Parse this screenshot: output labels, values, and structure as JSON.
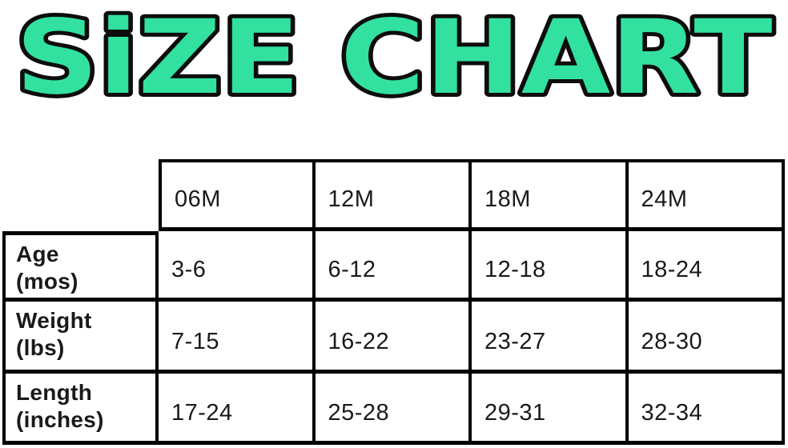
{
  "title": {
    "text": "SiZE CHART",
    "fill_color": "#32E19F",
    "outline_color": "#0d0d0d"
  },
  "table": {
    "column_headers": [
      "06M",
      "12M",
      "18M",
      "24M"
    ],
    "rows": [
      {
        "label_line1": "Age",
        "label_line2": "(mos)",
        "values": [
          "3-6",
          "6-12",
          "12-18",
          "18-24"
        ]
      },
      {
        "label_line1": "Weight",
        "label_line2": "(lbs)",
        "values": [
          "7-15",
          "16-22",
          "23-27",
          "28-30"
        ]
      },
      {
        "label_line1": "Length",
        "label_line2": "(inches)",
        "values": [
          "17-24",
          "25-28",
          "29-31",
          "32-34"
        ]
      }
    ]
  },
  "chart_data": {
    "type": "table",
    "title": "SIZE CHART",
    "columns": [
      "",
      "06M",
      "12M",
      "18M",
      "24M"
    ],
    "rows": [
      [
        "Age (mos)",
        "3-6",
        "6-12",
        "12-18",
        "18-24"
      ],
      [
        "Weight (lbs)",
        "7-15",
        "16-22",
        "23-27",
        "28-30"
      ],
      [
        "Length (inches)",
        "17-24",
        "25-28",
        "29-31",
        "32-34"
      ]
    ]
  }
}
